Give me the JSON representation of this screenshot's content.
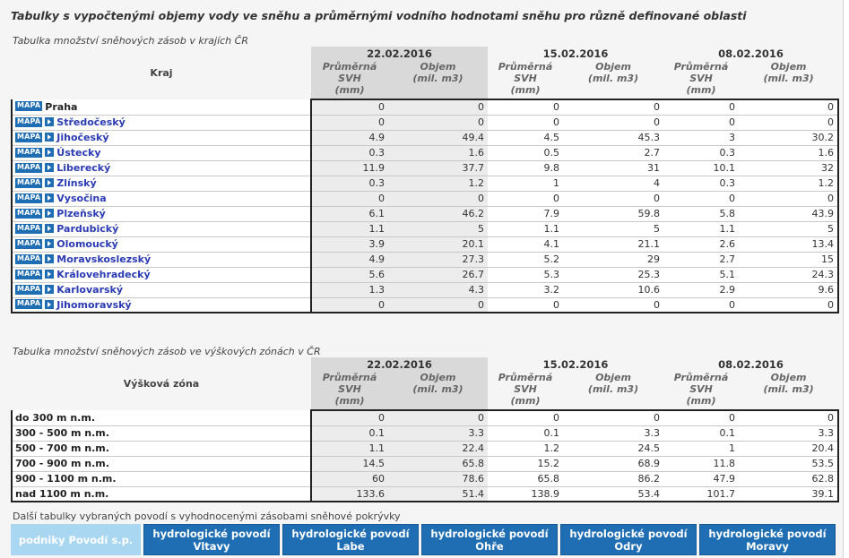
{
  "page_title": "Tabulky s vypočtenými objemy vody ve sněhu a průměrnými vodního hodnotami sněhu pro různě definované oblasti",
  "mapa_label": "MAPA",
  "dates": [
    "22.02.2016",
    "15.02.2016",
    "08.02.2016"
  ],
  "sub_headers": {
    "svh_line1": "Průměrná SVH",
    "svh_line2": "(mm)",
    "vol_line1": "Objem",
    "vol_line2": "(mil. m3)"
  },
  "regions_table": {
    "caption": "Tabulka množství sněhových zásob v krajích ČR",
    "first_col_header": "Kraj",
    "rows": [
      {
        "name": "Praha",
        "link": false,
        "values": [
          "0",
          "0",
          "0",
          "0",
          "0",
          "0"
        ]
      },
      {
        "name": "Středočeský",
        "link": true,
        "values": [
          "0",
          "0",
          "0",
          "0",
          "0",
          "0"
        ]
      },
      {
        "name": "Jihočeský",
        "link": true,
        "values": [
          "4.9",
          "49.4",
          "4.5",
          "45.3",
          "3",
          "30.2"
        ]
      },
      {
        "name": "Ústecky",
        "link": true,
        "values": [
          "0.3",
          "1.6",
          "0.5",
          "2.7",
          "0.3",
          "1.6"
        ]
      },
      {
        "name": "Liberecký",
        "link": true,
        "values": [
          "11.9",
          "37.7",
          "9.8",
          "31",
          "10.1",
          "32"
        ]
      },
      {
        "name": "Zlínský",
        "link": true,
        "values": [
          "0.3",
          "1.2",
          "1",
          "4",
          "0.3",
          "1.2"
        ]
      },
      {
        "name": "Vysočina",
        "link": true,
        "values": [
          "0",
          "0",
          "0",
          "0",
          "0",
          "0"
        ]
      },
      {
        "name": "Plzeňský",
        "link": true,
        "values": [
          "6.1",
          "46.2",
          "7.9",
          "59.8",
          "5.8",
          "43.9"
        ]
      },
      {
        "name": "Pardubický",
        "link": true,
        "values": [
          "1.1",
          "5",
          "1.1",
          "5",
          "1.1",
          "5"
        ]
      },
      {
        "name": "Olomoucký",
        "link": true,
        "values": [
          "3.9",
          "20.1",
          "4.1",
          "21.1",
          "2.6",
          "13.4"
        ]
      },
      {
        "name": "Moravskoslezský",
        "link": true,
        "values": [
          "4.9",
          "27.3",
          "5.2",
          "29",
          "2.7",
          "15"
        ]
      },
      {
        "name": "Královehradecký",
        "link": true,
        "values": [
          "5.6",
          "26.7",
          "5.3",
          "25.3",
          "5.1",
          "24.3"
        ]
      },
      {
        "name": "Karlovarský",
        "link": true,
        "values": [
          "1.3",
          "4.3",
          "3.2",
          "10.6",
          "2.9",
          "9.6"
        ]
      },
      {
        "name": "Jihomoravský",
        "link": true,
        "values": [
          "0",
          "0",
          "0",
          "0",
          "0",
          "0"
        ]
      }
    ]
  },
  "zones_table": {
    "caption": "Tabulka množství sněhových zásob ve výškových zónách v ČR",
    "first_col_header": "Výšková zóna",
    "rows": [
      {
        "name": "do 300 m n.m.",
        "values": [
          "0",
          "0",
          "0",
          "0",
          "0",
          "0"
        ]
      },
      {
        "name": "300 - 500 m n.m.",
        "values": [
          "0.1",
          "3.3",
          "0.1",
          "3.3",
          "0.1",
          "3.3"
        ]
      },
      {
        "name": "500 - 700 m n.m.",
        "values": [
          "1.1",
          "22.4",
          "1.2",
          "24.5",
          "1",
          "20.4"
        ]
      },
      {
        "name": "700 - 900 m n.m.",
        "values": [
          "14.5",
          "65.8",
          "15.2",
          "68.9",
          "11.8",
          "53.5"
        ]
      },
      {
        "name": "900 - 1100 m n.m.",
        "values": [
          "60",
          "78.6",
          "65.8",
          "86.2",
          "47.9",
          "62.8"
        ]
      },
      {
        "name": "nad 1100 m n.m.",
        "values": [
          "133.6",
          "51.4",
          "138.9",
          "53.4",
          "101.7",
          "39.1"
        ]
      }
    ]
  },
  "footer": {
    "caption": "Další tabulky vybraných povodí s vyhodnocenými zásobami sněhové pokrývky",
    "buttons": [
      {
        "line1": "podniky Povodí s.p.",
        "line2": "",
        "style": "light"
      },
      {
        "line1": "hydrologické povodí",
        "line2": "Vltavy",
        "style": "dark"
      },
      {
        "line1": "hydrologické povodí",
        "line2": "Labe",
        "style": "dark"
      },
      {
        "line1": "hydrologické povodí",
        "line2": "Ohře",
        "style": "dark"
      },
      {
        "line1": "hydrologické povodí",
        "line2": "Odry",
        "style": "dark"
      },
      {
        "line1": "hydrologické povodí",
        "line2": "Moravy",
        "style": "dark"
      }
    ]
  },
  "colors": {
    "button_dark": "#1f6db3",
    "button_light": "#a9d7f1",
    "link": "#2a3bb3",
    "shade": "#d9d9d9"
  }
}
